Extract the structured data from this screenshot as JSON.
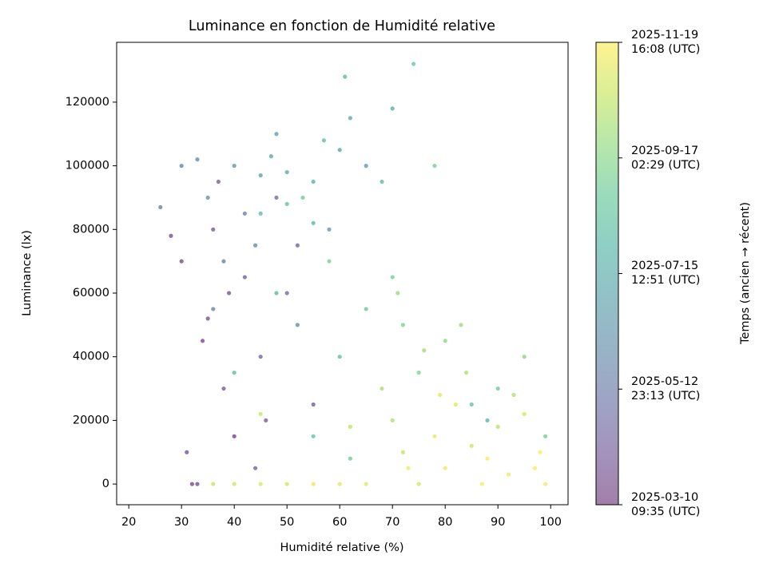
{
  "chart_data": {
    "type": "scatter",
    "title": "Luminance en fonction de Humidité relative",
    "x_label": "Humidité relative (%)",
    "y_label": "Luminance (lx)",
    "colorbar_label": "Temps (ancien → récent)",
    "colormap": "viridis",
    "xlim": [
      17.7,
      103.3
    ],
    "ylim": [
      -6500,
      138800
    ],
    "xticks": [
      20,
      30,
      40,
      50,
      60,
      70,
      80,
      90,
      100
    ],
    "yticks": [
      0,
      20000,
      40000,
      60000,
      80000,
      100000,
      120000
    ],
    "clim": [
      20157.4,
      20411.67
    ],
    "cticks": [
      {
        "value": 20157.4,
        "label": "2025-03-10\n09:35 (UTC)"
      },
      {
        "value": 20220.97,
        "label": "2025-05-12\n23:13 (UTC)"
      },
      {
        "value": 20284.54,
        "label": "2025-07-15\n12:51 (UTC)"
      },
      {
        "value": 20348.1,
        "label": "2025-09-17\n02:29 (UTC)"
      },
      {
        "value": 20411.67,
        "label": "2025-11-19\n16:08 (UTC)"
      }
    ],
    "x": [
      32,
      33,
      35,
      36,
      38,
      40,
      42,
      45,
      48,
      30,
      31,
      37,
      44,
      50,
      55,
      34,
      28,
      52,
      46,
      39,
      33,
      35,
      40,
      45,
      47,
      50,
      42,
      38,
      55,
      48,
      60,
      30,
      52,
      58,
      65,
      36,
      44,
      62,
      70,
      26,
      45,
      50,
      53,
      55,
      58,
      48,
      60,
      65,
      70,
      75,
      80,
      85,
      90,
      78,
      68,
      40,
      55,
      62,
      72,
      88,
      95,
      99,
      57,
      74,
      61,
      70,
      72,
      75,
      78,
      80,
      82,
      85,
      88,
      90,
      92,
      95,
      98,
      99,
      65,
      60,
      55,
      50,
      45,
      40,
      36,
      68,
      76,
      84,
      93,
      97,
      87,
      79,
      73,
      45,
      62,
      83,
      71
    ],
    "y": [
      0,
      0,
      52000,
      80000,
      30000,
      15000,
      65000,
      40000,
      90000,
      70000,
      10000,
      95000,
      5000,
      60000,
      25000,
      45000,
      78000,
      75000,
      20000,
      60000,
      102000,
      90000,
      100000,
      97000,
      103000,
      98000,
      85000,
      70000,
      95000,
      110000,
      105000,
      100000,
      50000,
      80000,
      100000,
      55000,
      75000,
      115000,
      118000,
      87000,
      85000,
      88000,
      90000,
      82000,
      70000,
      60000,
      40000,
      55000,
      65000,
      35000,
      45000,
      25000,
      30000,
      100000,
      95000,
      35000,
      15000,
      8000,
      50000,
      20000,
      40000,
      15000,
      108000,
      132000,
      128000,
      20000,
      10000,
      0,
      15000,
      5000,
      25000,
      12000,
      8000,
      18000,
      3000,
      22000,
      10000,
      0,
      0,
      0,
      0,
      0,
      0,
      0,
      0,
      30000,
      42000,
      35000,
      28000,
      5000,
      0,
      28000,
      5000,
      22000,
      18000,
      50000,
      60000
    ],
    "c": [
      20165,
      20170,
      20175,
      20180,
      20185,
      20160,
      20190,
      20195,
      20200,
      20170,
      20178,
      20188,
      20192,
      20198,
      20185,
      20168,
      20172,
      20196,
      20182,
      20176,
      20240,
      20250,
      20260,
      20270,
      20280,
      20285,
      20230,
      20225,
      20290,
      20265,
      20275,
      20235,
      20245,
      20255,
      20262,
      20228,
      20238,
      20282,
      20288,
      20222,
      20310,
      20320,
      20330,
      20300,
      20340,
      20305,
      20315,
      20325,
      20335,
      20345,
      20350,
      20318,
      20328,
      20338,
      20308,
      20312,
      20322,
      20332,
      20342,
      20302,
      20347,
      20336,
      20316,
      20326,
      20306,
      20370,
      20380,
      20390,
      20400,
      20405,
      20395,
      20385,
      20408,
      20375,
      20402,
      20390,
      20410,
      20405,
      20398,
      20395,
      20400,
      20388,
      20392,
      20385,
      20380,
      20365,
      20362,
      20368,
      20373,
      20407,
      20409,
      20397,
      20403,
      20383,
      20378,
      20360,
      20358
    ]
  }
}
